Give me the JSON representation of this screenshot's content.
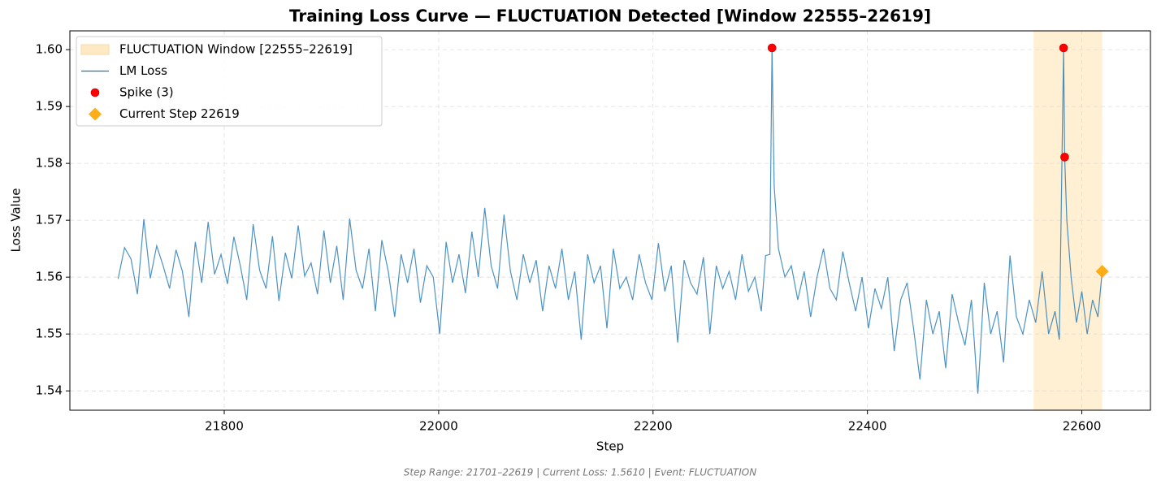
{
  "chart_data": {
    "type": "line",
    "title": "Training Loss Curve — FLUCTUATION Detected [Window 22555–22619]",
    "xlabel": "Step",
    "ylabel": "Loss Value",
    "footnote": "Step Range: 21701–22619 | Current Loss: 1.5610 | Event: FLUCTUATION",
    "xlim": [
      21656,
      22664
    ],
    "ylim": [
      1.5366,
      1.6033
    ],
    "xticks": [
      21800,
      22000,
      22200,
      22400,
      22600
    ],
    "yticks": [
      1.54,
      1.55,
      1.56,
      1.57,
      1.58,
      1.59,
      {
        "value": 1.6,
        "label": "1.60"
      }
    ],
    "grid": true,
    "legend": "upper left",
    "highlight": {
      "name": "FLUCTUATION Window [22555–22619]",
      "range": [
        22555,
        22619
      ],
      "color": "#ffe9c4"
    },
    "series": [
      {
        "name": "LM Loss",
        "type": "line",
        "color": "#1f77b4",
        "x": [
          21701,
          21707,
          21713,
          21719,
          21725,
          21731,
          21737,
          21743,
          21749,
          21755,
          21761,
          21767,
          21773,
          21779,
          21785,
          21791,
          21797,
          21803,
          21809,
          21815,
          21821,
          21827,
          21833,
          21839,
          21845,
          21851,
          21857,
          21863,
          21869,
          21875,
          21881,
          21887,
          21893,
          21899,
          21905,
          21911,
          21917,
          21923,
          21929,
          21935,
          21941,
          21947,
          21953,
          21959,
          21965,
          21971,
          21977,
          21983,
          21989,
          21995,
          22001,
          22007,
          22013,
          22019,
          22025,
          22031,
          22037,
          22043,
          22049,
          22055,
          22061,
          22067,
          22073,
          22079,
          22085,
          22091,
          22097,
          22103,
          22109,
          22115,
          22121,
          22127,
          22133,
          22139,
          22145,
          22151,
          22157,
          22163,
          22169,
          22175,
          22181,
          22187,
          22193,
          22199,
          22205,
          22211,
          22217,
          22223,
          22229,
          22235,
          22241,
          22247,
          22253,
          22259,
          22265,
          22271,
          22277,
          22283,
          22289,
          22295,
          22301,
          22305,
          22309,
          22311,
          22313,
          22317,
          22323,
          22329,
          22335,
          22341,
          22347,
          22353,
          22359,
          22365,
          22371,
          22377,
          22383,
          22389,
          22395,
          22401,
          22407,
          22413,
          22419,
          22425,
          22431,
          22437,
          22443,
          22449,
          22455,
          22461,
          22467,
          22473,
          22479,
          22485,
          22491,
          22497,
          22503,
          22509,
          22515,
          22521,
          22527,
          22533,
          22539,
          22545,
          22551,
          22557,
          22563,
          22569,
          22575,
          22579,
          22583,
          22584,
          22586,
          22590,
          22595,
          22600,
          22605,
          22610,
          22615,
          22619
        ],
        "values": [
          1.5597,
          1.5652,
          1.5632,
          1.557,
          1.5702,
          1.5598,
          1.5655,
          1.562,
          1.558,
          1.5648,
          1.561,
          1.553,
          1.5662,
          1.559,
          1.5697,
          1.5605,
          1.564,
          1.5588,
          1.5671,
          1.562,
          1.556,
          1.5693,
          1.5612,
          1.558,
          1.5672,
          1.5558,
          1.5643,
          1.5598,
          1.5691,
          1.5602,
          1.5625,
          1.557,
          1.5682,
          1.559,
          1.5655,
          1.556,
          1.5703,
          1.5612,
          1.558,
          1.565,
          1.554,
          1.5665,
          1.561,
          1.553,
          1.564,
          1.559,
          1.565,
          1.5555,
          1.562,
          1.56,
          1.55,
          1.5662,
          1.559,
          1.564,
          1.5572,
          1.568,
          1.56,
          1.5722,
          1.562,
          1.558,
          1.571,
          1.561,
          1.556,
          1.564,
          1.559,
          1.563,
          1.554,
          1.562,
          1.558,
          1.565,
          1.556,
          1.561,
          1.549,
          1.564,
          1.559,
          1.562,
          1.551,
          1.565,
          1.558,
          1.56,
          1.556,
          1.564,
          1.559,
          1.556,
          1.566,
          1.5575,
          1.562,
          1.5485,
          1.563,
          1.559,
          1.557,
          1.5635,
          1.55,
          1.562,
          1.558,
          1.561,
          1.556,
          1.564,
          1.5575,
          1.56,
          1.554,
          1.5638,
          1.564,
          1.6003,
          1.576,
          1.565,
          1.56,
          1.562,
          1.556,
          1.561,
          1.553,
          1.56,
          1.565,
          1.558,
          1.556,
          1.5645,
          1.559,
          1.554,
          1.56,
          1.551,
          1.558,
          1.5545,
          1.56,
          1.547,
          1.556,
          1.559,
          1.551,
          1.542,
          1.556,
          1.55,
          1.554,
          1.544,
          1.557,
          1.552,
          1.548,
          1.556,
          1.5395,
          1.559,
          1.55,
          1.554,
          1.545,
          1.5638,
          1.553,
          1.55,
          1.556,
          1.552,
          1.561,
          1.55,
          1.554,
          1.549,
          1.6003,
          1.5811,
          1.57,
          1.56,
          1.552,
          1.5575,
          1.55,
          1.556,
          1.553,
          1.561
        ]
      },
      {
        "name": "Spike (3)",
        "type": "scatter",
        "marker": "circle",
        "color": "#ff0000",
        "x": [
          22311,
          22583,
          22584
        ],
        "values": [
          1.6003,
          1.6003,
          1.5811
        ]
      },
      {
        "name": "Current Step 22619",
        "type": "scatter",
        "marker": "diamond",
        "color": "#ffa500",
        "x": [
          22619
        ],
        "values": [
          1.561
        ]
      }
    ]
  }
}
